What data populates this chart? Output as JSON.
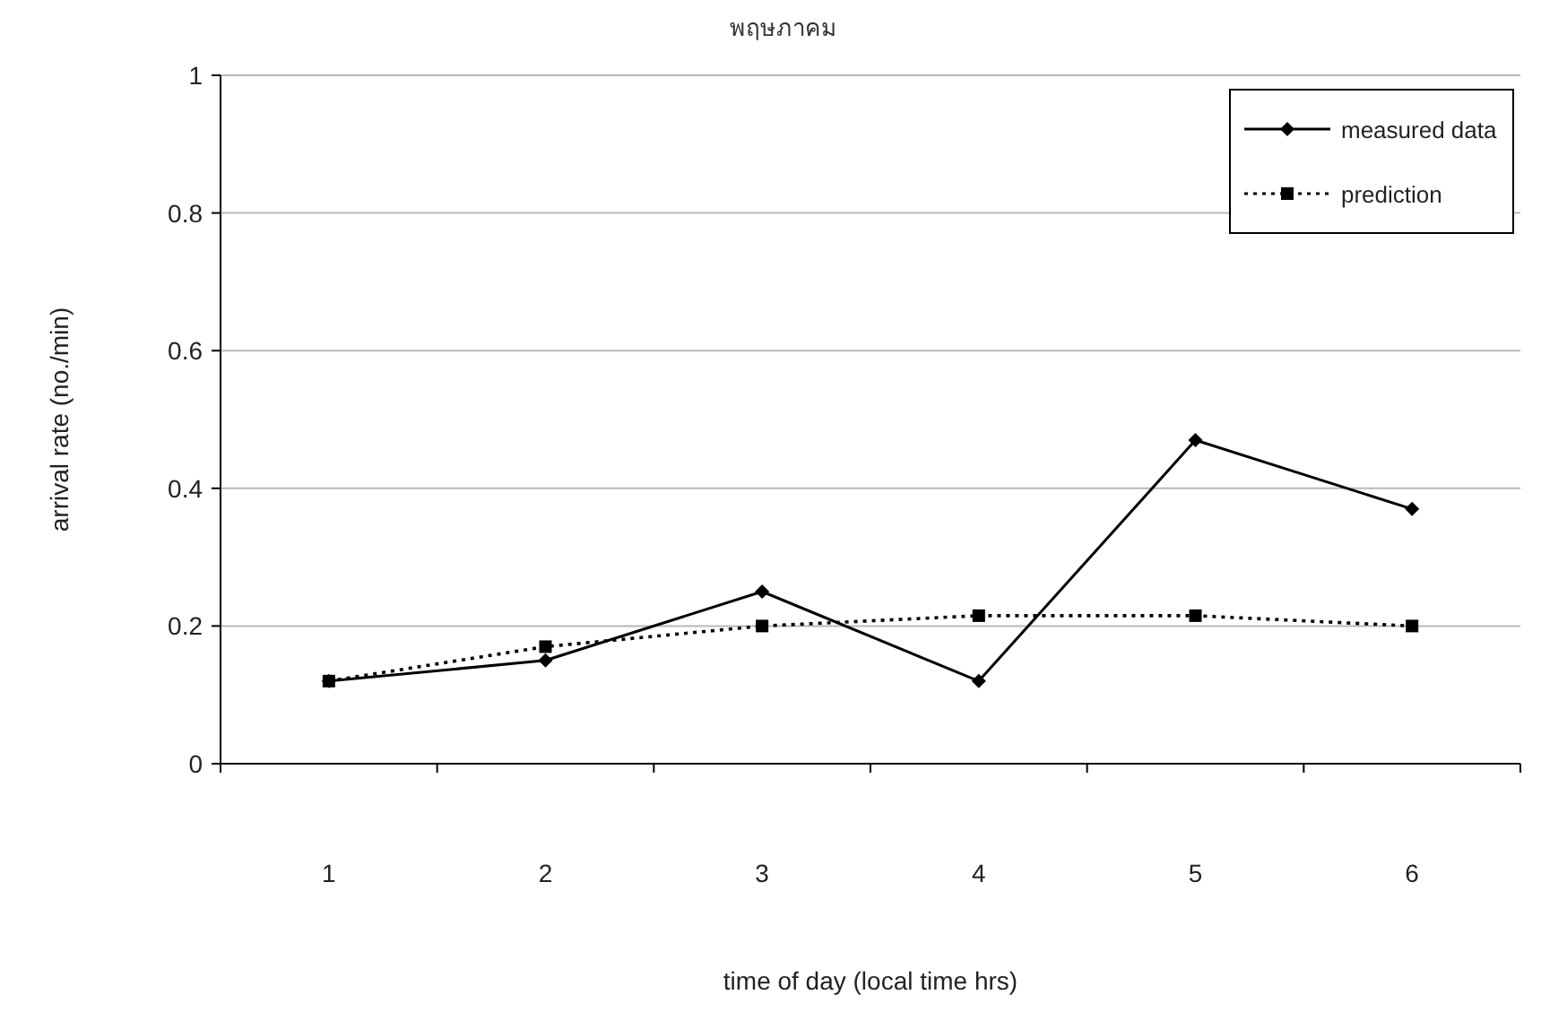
{
  "chart_data": {
    "type": "line",
    "title": "พฤษภาคม",
    "xlabel": "time of day (local time hrs)",
    "ylabel": "arrival rate (no./min)",
    "categories": [
      "1",
      "2",
      "3",
      "4",
      "5",
      "6"
    ],
    "series": [
      {
        "name": "measured data",
        "color": "#000000",
        "marker": "diamond",
        "line_style": "solid",
        "values": [
          0.12,
          0.15,
          0.25,
          0.12,
          0.47,
          0.37
        ]
      },
      {
        "name": "prediction",
        "color": "#000000",
        "marker": "square",
        "line_style": "dotted",
        "values": [
          0.12,
          0.17,
          0.2,
          0.215,
          0.215,
          0.2
        ]
      }
    ],
    "ylim": [
      0,
      1
    ],
    "yticks": [
      0,
      0.2,
      0.4,
      0.6,
      0.8,
      1
    ],
    "grid": "y",
    "legend": "top right"
  }
}
